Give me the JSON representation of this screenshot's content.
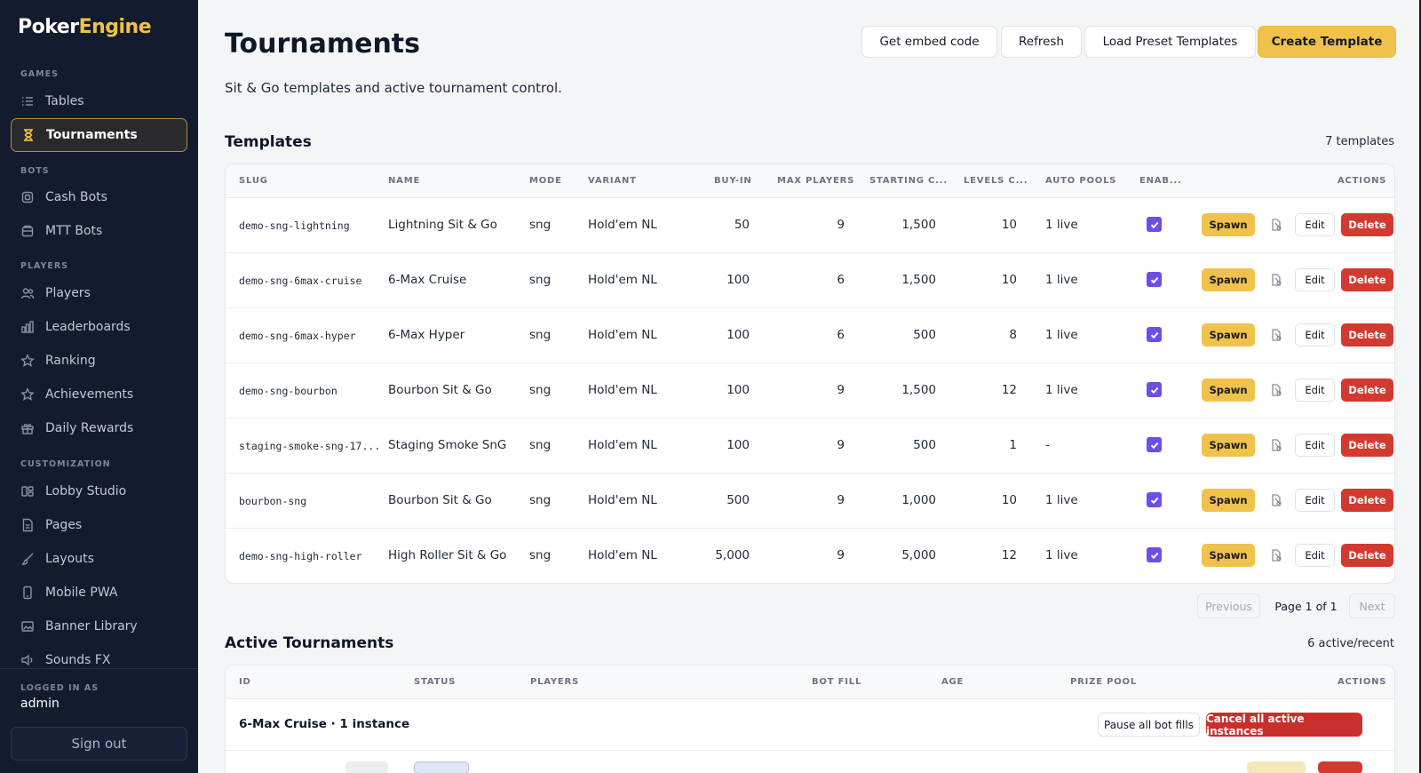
{
  "brand": {
    "part1": "Poker",
    "part2": "Engine"
  },
  "sidebar": {
    "sections": {
      "games": "GAMES",
      "bots": "BOTS",
      "players": "PLAYERS",
      "customization": "CUSTOMIZATION"
    },
    "items": {
      "tables": "Tables",
      "tournaments": "Tournaments",
      "cash_bots": "Cash Bots",
      "mtt_bots": "MTT Bots",
      "players": "Players",
      "leaderboards": "Leaderboards",
      "ranking": "Ranking",
      "achievements": "Achievements",
      "daily_rewards": "Daily Rewards",
      "lobby_studio": "Lobby Studio",
      "pages": "Pages",
      "layouts": "Layouts",
      "mobile_pwa": "Mobile PWA",
      "banner_library": "Banner Library",
      "sounds_fx": "Sounds FX"
    },
    "active_item": "Tournaments",
    "logged_in_label": "LOGGED IN AS",
    "username": "admin",
    "sign_out": "Sign out"
  },
  "header": {
    "title": "Tournaments",
    "subtitle": "Sit & Go templates and active tournament control.",
    "buttons": {
      "embed": "Get embed code",
      "refresh": "Refresh",
      "load_presets": "Load Preset Templates",
      "create": "Create Template"
    }
  },
  "templates": {
    "title": "Templates",
    "count": "7 templates",
    "columns": {
      "slug": "SLUG",
      "name": "NAME",
      "mode": "MODE",
      "variant": "VARIANT",
      "buy_in": "BUY-IN",
      "max_players": "MAX PLAYERS",
      "starting_chips": "STARTING C...",
      "levels": "LEVELS C...",
      "auto_pools": "AUTO POOLS",
      "enabled": "ENAB...",
      "actions": "ACTIONS"
    },
    "action_labels": {
      "spawn": "Spawn",
      "edit": "Edit",
      "delete": "Delete"
    },
    "rows": [
      {
        "slug": "demo-sng-lightning",
        "name": "Lightning Sit & Go",
        "mode": "sng",
        "variant": "Hold'em NL",
        "buy_in": "50",
        "max_players": "9",
        "starting_chips": "1,500",
        "levels": "10",
        "auto_pools": "1 live",
        "enabled": true
      },
      {
        "slug": "demo-sng-6max-cruise",
        "name": "6-Max Cruise",
        "mode": "sng",
        "variant": "Hold'em NL",
        "buy_in": "100",
        "max_players": "6",
        "starting_chips": "1,500",
        "levels": "10",
        "auto_pools": "1 live",
        "enabled": true
      },
      {
        "slug": "demo-sng-6max-hyper",
        "name": "6-Max Hyper",
        "mode": "sng",
        "variant": "Hold'em NL",
        "buy_in": "100",
        "max_players": "6",
        "starting_chips": "500",
        "levels": "8",
        "auto_pools": "1 live",
        "enabled": true
      },
      {
        "slug": "demo-sng-bourbon",
        "name": "Bourbon Sit & Go",
        "mode": "sng",
        "variant": "Hold'em NL",
        "buy_in": "100",
        "max_players": "9",
        "starting_chips": "1,500",
        "levels": "12",
        "auto_pools": "1 live",
        "enabled": true
      },
      {
        "slug": "staging-smoke-sng-17...",
        "name": "Staging Smoke SnG",
        "mode": "sng",
        "variant": "Hold'em NL",
        "buy_in": "100",
        "max_players": "9",
        "starting_chips": "500",
        "levels": "1",
        "auto_pools": "-",
        "enabled": true
      },
      {
        "slug": "bourbon-sng",
        "name": "Bourbon Sit & Go",
        "mode": "sng",
        "variant": "Hold'em NL",
        "buy_in": "500",
        "max_players": "9",
        "starting_chips": "1,000",
        "levels": "10",
        "auto_pools": "1 live",
        "enabled": true
      },
      {
        "slug": "demo-sng-high-roller",
        "name": "High Roller Sit & Go",
        "mode": "sng",
        "variant": "Hold'em NL",
        "buy_in": "5,000",
        "max_players": "9",
        "starting_chips": "5,000",
        "levels": "12",
        "auto_pools": "1 live",
        "enabled": true
      }
    ],
    "pagination": {
      "previous": "Previous",
      "page": "Page 1 of 1",
      "next": "Next"
    }
  },
  "active": {
    "title": "Active Tournaments",
    "count": "6 active/recent",
    "columns": {
      "id": "ID",
      "status": "STATUS",
      "players": "PLAYERS",
      "bot_fill": "BOT FILL",
      "age": "AGE",
      "prize_pool": "PRIZE POOL",
      "actions": "ACTIONS"
    },
    "group": {
      "title": "6-Max Cruise · 1 instance",
      "pause_label": "Pause all bot fills",
      "cancel_label": "Cancel all active instances"
    }
  },
  "colors": {
    "sidebar_bg": "#131b2e",
    "accent": "#f0c24b",
    "danger": "#d33a2f",
    "checkbox": "#6d4ee6"
  }
}
